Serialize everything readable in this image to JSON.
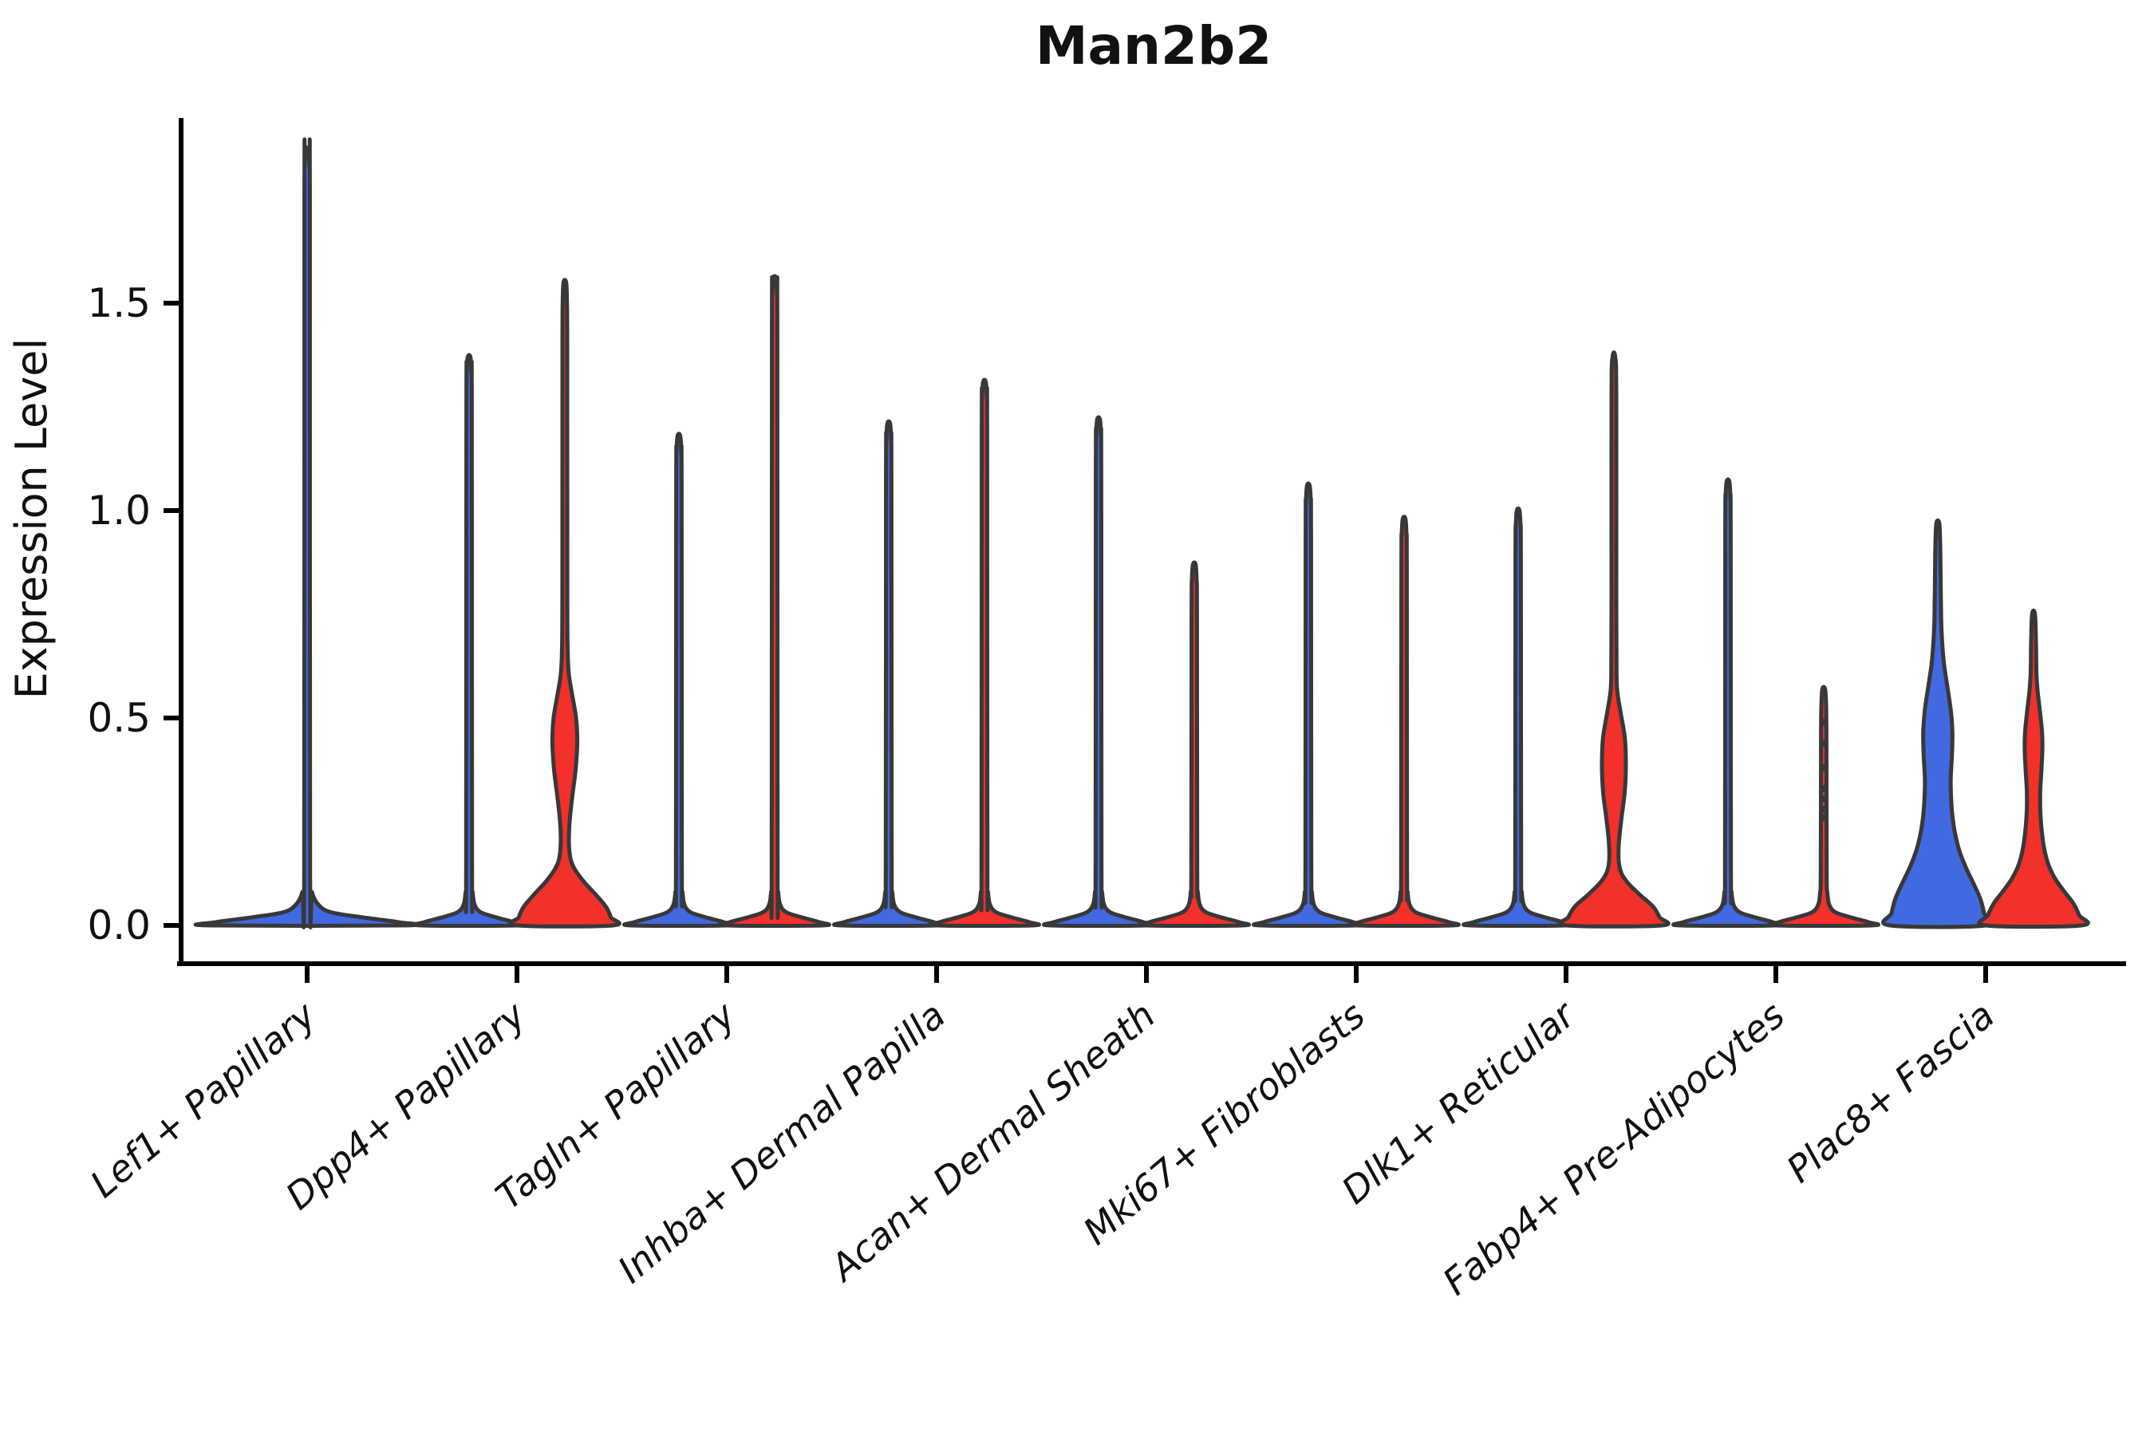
{
  "figure": {
    "background": "#ffffff"
  },
  "colors": {
    "blue": "#4169e1",
    "red": "#f3302a",
    "outline": "#383838",
    "axis": "#000000",
    "text": "#111111"
  },
  "chart_data": {
    "type": "violin",
    "title": "Man2b2",
    "xlabel": "",
    "ylabel": "Expression Level",
    "ylim": [
      0,
      1.95
    ],
    "yticks": [
      0.0,
      0.5,
      1.0,
      1.5
    ],
    "ytick_labels": [
      "0.0",
      "0.5",
      "1.0",
      "1.5"
    ],
    "grid": false,
    "legend": "none",
    "x_label_rotation_deg": 40,
    "x_label_style": "italic",
    "categories": [
      "Lef1+ Papillary",
      "Dpp4+ Papillary",
      "Tagln+ Papillary",
      "Inhba+ Dermal Papilla",
      "Acan+ Dermal Sheath",
      "Mki67+ Fibroblasts",
      "Dlk1+ Reticular",
      "Fabp4+ Pre-Adipocytes",
      "Plac8+ Fascia"
    ],
    "groups": [
      {
        "position": "left",
        "color": "blue"
      },
      {
        "position": "right",
        "color": "red"
      }
    ],
    "violins": [
      {
        "category": "Lef1+ Papillary",
        "position": "center",
        "color": "blue",
        "shape": "spike",
        "max": 1.87,
        "base_halfwidth": 2.04
      },
      {
        "category": "Dpp4+ Papillary",
        "position": "left",
        "color": "blue",
        "shape": "spike",
        "max": 1.37,
        "base_halfwidth": 1.0
      },
      {
        "category": "Dpp4+ Papillary",
        "position": "right",
        "color": "red",
        "shape": "profile",
        "max": 1.55,
        "profile": [
          [
            0.0,
            1.0
          ],
          [
            0.02,
            0.96
          ],
          [
            0.045,
            0.86
          ],
          [
            0.075,
            0.64
          ],
          [
            0.105,
            0.4
          ],
          [
            0.135,
            0.21
          ],
          [
            0.16,
            0.12
          ],
          [
            0.2,
            0.085
          ],
          [
            0.25,
            0.1
          ],
          [
            0.31,
            0.155
          ],
          [
            0.375,
            0.225
          ],
          [
            0.44,
            0.26
          ],
          [
            0.5,
            0.235
          ],
          [
            0.555,
            0.155
          ],
          [
            0.605,
            0.085
          ],
          [
            0.66,
            0.06
          ],
          [
            0.8,
            0.052
          ],
          [
            1.4,
            0.05
          ],
          [
            1.5,
            0.045
          ],
          [
            1.55,
            0.028
          ]
        ]
      },
      {
        "category": "Tagln+ Papillary",
        "position": "left",
        "color": "blue",
        "shape": "spike",
        "max": 1.18,
        "base_halfwidth": 1.0
      },
      {
        "category": "Tagln+ Papillary",
        "position": "right",
        "color": "red",
        "shape": "spike",
        "max": 1.56,
        "base_halfwidth": 1.0
      },
      {
        "category": "Inhba+ Dermal Papilla",
        "position": "left",
        "color": "blue",
        "shape": "spike",
        "max": 1.21,
        "base_halfwidth": 1.0
      },
      {
        "category": "Inhba+ Dermal Papilla",
        "position": "right",
        "color": "red",
        "shape": "spike",
        "max": 1.31,
        "base_halfwidth": 1.0
      },
      {
        "category": "Acan+ Dermal Sheath",
        "position": "left",
        "color": "blue",
        "shape": "spike",
        "max": 1.22,
        "base_halfwidth": 1.0
      },
      {
        "category": "Acan+ Dermal Sheath",
        "position": "right",
        "color": "red",
        "shape": "spike",
        "max": 0.87,
        "base_halfwidth": 1.0
      },
      {
        "category": "Mki67+ Fibroblasts",
        "position": "left",
        "color": "blue",
        "shape": "spike",
        "max": 1.06,
        "base_halfwidth": 1.0
      },
      {
        "category": "Mki67+ Fibroblasts",
        "position": "right",
        "color": "red",
        "shape": "spike",
        "max": 0.98,
        "base_halfwidth": 1.0
      },
      {
        "category": "Dlk1+ Reticular",
        "position": "left",
        "color": "blue",
        "shape": "spike",
        "max": 1.0,
        "base_halfwidth": 1.0
      },
      {
        "category": "Dlk1+ Reticular",
        "position": "right",
        "color": "red",
        "shape": "profile",
        "max": 1.37,
        "profile": [
          [
            0.0,
            1.0
          ],
          [
            0.02,
            0.95
          ],
          [
            0.045,
            0.82
          ],
          [
            0.072,
            0.56
          ],
          [
            0.1,
            0.31
          ],
          [
            0.125,
            0.16
          ],
          [
            0.155,
            0.1
          ],
          [
            0.2,
            0.105
          ],
          [
            0.26,
            0.16
          ],
          [
            0.32,
            0.225
          ],
          [
            0.385,
            0.25
          ],
          [
            0.45,
            0.23
          ],
          [
            0.51,
            0.145
          ],
          [
            0.56,
            0.075
          ],
          [
            0.61,
            0.055
          ],
          [
            0.8,
            0.05
          ],
          [
            1.28,
            0.05
          ],
          [
            1.37,
            0.028
          ]
        ]
      },
      {
        "category": "Fabp4+ Pre-Adipocytes",
        "position": "left",
        "color": "blue",
        "shape": "spike",
        "max": 1.07,
        "base_halfwidth": 1.0
      },
      {
        "category": "Fabp4+ Pre-Adipocytes",
        "position": "right",
        "color": "red",
        "shape": "spike",
        "max": 0.57,
        "base_halfwidth": 1.0,
        "points": [
          0.26,
          0.28,
          0.305,
          0.33,
          0.38,
          0.44,
          0.49
        ]
      },
      {
        "category": "Plac8+ Fascia",
        "position": "left",
        "color": "blue",
        "shape": "profile",
        "max": 0.97,
        "profile": [
          [
            0.0,
            1.0
          ],
          [
            0.03,
            0.965
          ],
          [
            0.065,
            0.885
          ],
          [
            0.1,
            0.75
          ],
          [
            0.14,
            0.585
          ],
          [
            0.18,
            0.45
          ],
          [
            0.225,
            0.355
          ],
          [
            0.27,
            0.3
          ],
          [
            0.315,
            0.275
          ],
          [
            0.355,
            0.27
          ],
          [
            0.41,
            0.295
          ],
          [
            0.465,
            0.305
          ],
          [
            0.52,
            0.27
          ],
          [
            0.575,
            0.2
          ],
          [
            0.63,
            0.13
          ],
          [
            0.685,
            0.09
          ],
          [
            0.74,
            0.07
          ],
          [
            0.85,
            0.058
          ],
          [
            0.92,
            0.05
          ],
          [
            0.97,
            0.03
          ]
        ]
      },
      {
        "category": "Plac8+ Fascia",
        "position": "right",
        "color": "red",
        "shape": "profile",
        "max": 0.75,
        "profile": [
          [
            0.0,
            1.0
          ],
          [
            0.025,
            0.95
          ],
          [
            0.055,
            0.82
          ],
          [
            0.085,
            0.62
          ],
          [
            0.115,
            0.44
          ],
          [
            0.15,
            0.3
          ],
          [
            0.19,
            0.215
          ],
          [
            0.235,
            0.165
          ],
          [
            0.28,
            0.14
          ],
          [
            0.325,
            0.14
          ],
          [
            0.375,
            0.165
          ],
          [
            0.425,
            0.185
          ],
          [
            0.47,
            0.175
          ],
          [
            0.52,
            0.13
          ],
          [
            0.565,
            0.085
          ],
          [
            0.61,
            0.06
          ],
          [
            0.68,
            0.052
          ],
          [
            0.75,
            0.03
          ]
        ]
      }
    ]
  }
}
